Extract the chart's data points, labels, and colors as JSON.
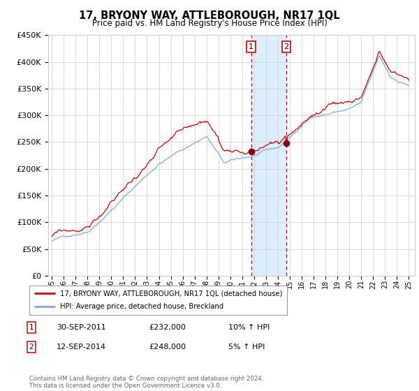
{
  "title": "17, BRYONY WAY, ATTLEBOROUGH, NR17 1QL",
  "subtitle": "Price paid vs. HM Land Registry's House Price Index (HPI)",
  "red_label": "17, BRYONY WAY, ATTLEBOROUGH, NR17 1QL (detached house)",
  "blue_label": "HPI: Average price, detached house, Breckland",
  "sale1_date": "30-SEP-2011",
  "sale1_price": 232000,
  "sale1_hpi": "10% ↑ HPI",
  "sale2_date": "12-SEP-2014",
  "sale2_price": 248000,
  "sale2_hpi": "5% ↑ HPI",
  "footnote": "Contains HM Land Registry data © Crown copyright and database right 2024.\nThis data is licensed under the Open Government Licence v3.0.",
  "ylim_min": 0,
  "ylim_max": 450000,
  "yticks": [
    0,
    50000,
    100000,
    150000,
    200000,
    250000,
    300000,
    350000,
    400000,
    450000
  ],
  "start_year": 1995,
  "end_year": 2025,
  "red_color": "#cc0000",
  "blue_color": "#7aaadd",
  "shade_color": "#ddeeff",
  "background_color": "#ffffff",
  "grid_color": "#cccccc",
  "sale1_year": 2011.75,
  "sale2_year": 2014.7
}
